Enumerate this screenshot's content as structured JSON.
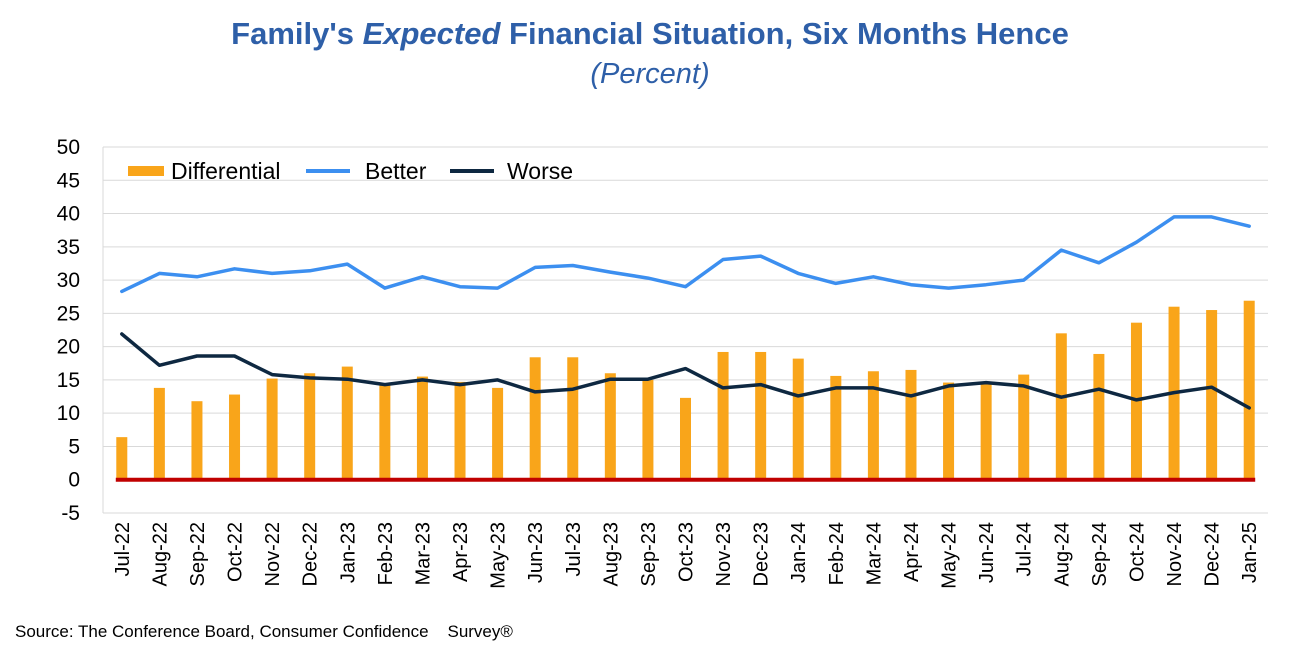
{
  "title": {
    "part1": "Family's ",
    "emphasis": "Expected",
    "part2": " Financial Situation, Six Months Hence"
  },
  "subtitle": "(Percent)",
  "source": "Source: The Conference Board, Consumer Confidence    Survey®",
  "chart_data": {
    "type": "bar",
    "title": "Family's Expected Financial Situation, Six Months Hence",
    "subtitle": "(Percent)",
    "xlabel": "",
    "ylabel": "",
    "ylim": [
      -5,
      50
    ],
    "yticks": [
      -5,
      0,
      5,
      10,
      15,
      20,
      25,
      30,
      35,
      40,
      45,
      50
    ],
    "grid": true,
    "legend_position": "top-left",
    "categories": [
      "Jul-22",
      "Aug-22",
      "Sep-22",
      "Oct-22",
      "Nov-22",
      "Dec-22",
      "Jan-23",
      "Feb-23",
      "Mar-23",
      "Apr-23",
      "May-23",
      "Jun-23",
      "Jul-23",
      "Aug-23",
      "Sep-23",
      "Oct-23",
      "Nov-23",
      "Dec-23",
      "Jan-24",
      "Feb-24",
      "Mar-24",
      "Apr-24",
      "May-24",
      "Jun-24",
      "Jul-24",
      "Aug-24",
      "Sep-24",
      "Oct-24",
      "Nov-24",
      "Dec-24",
      "Jan-25"
    ],
    "series": [
      {
        "name": "Differential",
        "type": "bar",
        "color": "#f9a51a",
        "values": [
          6.4,
          13.8,
          11.8,
          12.8,
          15.2,
          16.0,
          17.0,
          14.5,
          15.5,
          14.7,
          13.8,
          18.4,
          18.4,
          16.0,
          15.0,
          12.3,
          19.2,
          19.2,
          18.2,
          15.6,
          16.3,
          16.5,
          14.6,
          14.6,
          15.8,
          22.0,
          18.9,
          23.6,
          26.0,
          25.5,
          26.9
        ]
      },
      {
        "name": "Better",
        "type": "line",
        "color": "#3c8ff0",
        "values": [
          28.3,
          31.0,
          30.5,
          31.7,
          31.0,
          31.4,
          32.4,
          28.8,
          30.5,
          29.0,
          28.8,
          31.9,
          32.2,
          31.2,
          30.3,
          29.0,
          33.1,
          33.6,
          31.0,
          29.5,
          30.5,
          29.3,
          28.8,
          29.3,
          30.0,
          34.5,
          32.6,
          35.7,
          39.5,
          39.5,
          38.1
        ]
      },
      {
        "name": "Worse",
        "type": "line",
        "color": "#0e2841",
        "values": [
          21.9,
          17.2,
          18.6,
          18.6,
          15.8,
          15.3,
          15.1,
          14.3,
          15.0,
          14.3,
          15.0,
          13.2,
          13.6,
          15.1,
          15.1,
          16.7,
          13.8,
          14.3,
          12.6,
          13.8,
          13.8,
          12.6,
          14.1,
          14.6,
          14.1,
          12.4,
          13.6,
          12.0,
          13.1,
          13.9,
          10.8
        ]
      }
    ],
    "zero_line_color": "#c00000"
  }
}
